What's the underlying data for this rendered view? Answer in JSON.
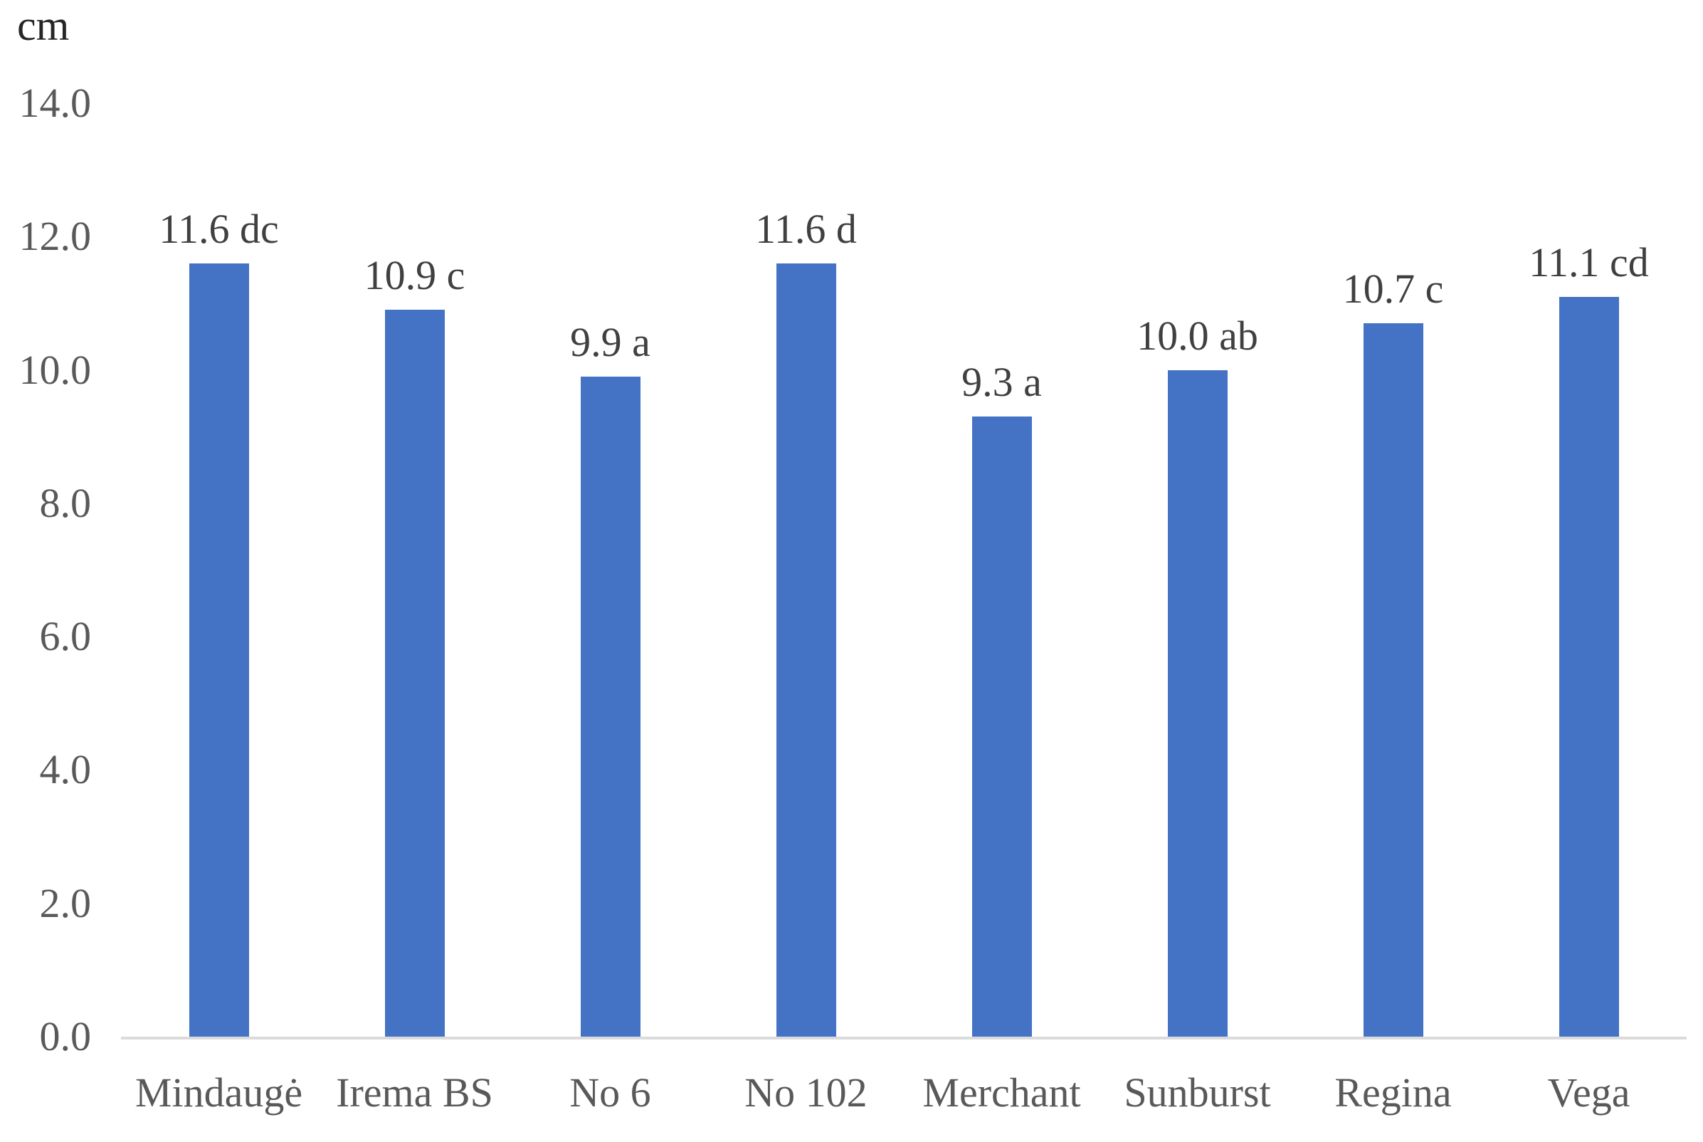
{
  "chart_data": {
    "type": "bar",
    "categories": [
      "Mindaugė",
      "Irema BS",
      "No 6",
      "No 102",
      "Merchant",
      "Sunburst",
      "Regina",
      "Vega"
    ],
    "values": [
      11.6,
      10.9,
      9.9,
      11.6,
      9.3,
      10.0,
      10.7,
      11.1
    ],
    "data_labels": [
      "11.6 dc",
      "10.9 c",
      "9.9 a",
      "11.6 d",
      "9.3 a",
      "10.0 ab",
      "10.7 c",
      "11.1 cd"
    ],
    "ylabel": "cm",
    "xlabel": "",
    "ylim": [
      0,
      14
    ],
    "yticks": [
      "0.0",
      "2.0",
      "4.0",
      "6.0",
      "8.0",
      "10.0",
      "12.0",
      "14.0"
    ],
    "grid": false,
    "legend_position": "none",
    "bar_color": "#4472C4",
    "axis_line_color": "#DBDBDB",
    "tick_label_color": "#595959",
    "category_label_color": "#595959",
    "data_label_color": "#404040",
    "unit_label_color": "#262626",
    "background_color": "#FFFFFF"
  }
}
